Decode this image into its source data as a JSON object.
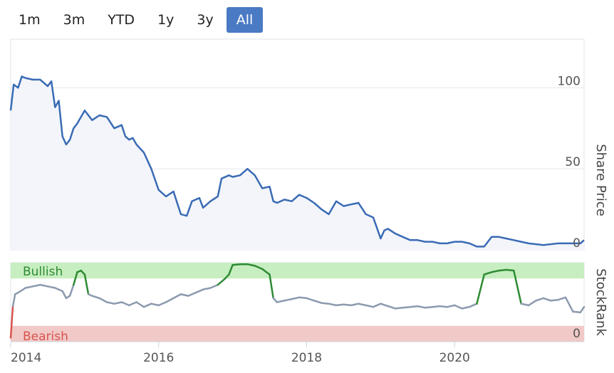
{
  "range_buttons": [
    {
      "label": "1m",
      "active": false
    },
    {
      "label": "3m",
      "active": false
    },
    {
      "label": "YTD",
      "active": false
    },
    {
      "label": "1y",
      "active": false
    },
    {
      "label": "3y",
      "active": false
    },
    {
      "label": "All",
      "active": true
    }
  ],
  "colors": {
    "price_line": "#3a6bb5",
    "price_fill": "#f3f5fa",
    "bullish_band": "#c7eec0",
    "bearish_band": "#f1c9c6",
    "rank_neutral": "#8c9aae",
    "rank_bullish": "#2e8b34",
    "rank_bearish": "#d9534f",
    "accent_button": "#4a7ac4"
  },
  "chart_data": [
    {
      "type": "line",
      "ylabel": "Share Price",
      "y_ticks": [
        "0",
        "50",
        "100"
      ],
      "ylim": [
        0,
        130
      ],
      "x_ticks": [
        "2014",
        "2016",
        "2018",
        "2020"
      ],
      "xlim": [
        2014.0,
        2021.75
      ],
      "grid": true,
      "series": [
        {
          "x": [
            2014.0,
            2014.04,
            2014.1,
            2014.15,
            2014.2,
            2014.3,
            2014.4,
            2014.5,
            2014.55,
            2014.6,
            2014.65,
            2014.7,
            2014.75,
            2014.8,
            2014.85,
            2014.9,
            2015.0,
            2015.1,
            2015.2,
            2015.3,
            2015.4,
            2015.5,
            2015.55,
            2015.6,
            2015.65,
            2015.7,
            2015.8,
            2015.9,
            2016.0,
            2016.1,
            2016.2,
            2016.3,
            2016.38,
            2016.45,
            2016.55,
            2016.6,
            2016.7,
            2016.8,
            2016.85,
            2016.95,
            2017.0,
            2017.1,
            2017.2,
            2017.3,
            2017.4,
            2017.5,
            2017.55,
            2017.6,
            2017.7,
            2017.8,
            2017.9,
            2018.0,
            2018.1,
            2018.2,
            2018.3,
            2018.4,
            2018.5,
            2018.6,
            2018.7,
            2018.8,
            2018.9,
            2019.0,
            2019.05,
            2019.1,
            2019.2,
            2019.3,
            2019.4,
            2019.5,
            2019.6,
            2019.7,
            2019.8,
            2019.9,
            2020.0,
            2020.1,
            2020.2,
            2020.3,
            2020.4,
            2020.5,
            2020.6,
            2020.7,
            2020.8,
            2020.9,
            2021.0,
            2021.2,
            2021.4,
            2021.6,
            2021.7,
            2021.75
          ],
          "values": [
            86,
            102,
            100,
            107,
            106,
            105,
            105,
            101,
            104,
            88,
            92,
            70,
            65,
            68,
            75,
            78,
            86,
            80,
            83,
            82,
            75,
            77,
            70,
            68,
            69,
            65,
            60,
            50,
            37,
            33,
            36,
            22,
            21,
            30,
            32,
            26,
            30,
            33,
            44,
            46,
            45,
            46,
            50,
            46,
            38,
            39,
            30,
            29,
            31,
            30,
            34,
            32,
            29,
            25,
            22,
            30,
            27,
            28,
            29,
            22,
            20,
            7,
            12,
            13,
            10,
            8,
            6,
            6,
            5,
            5,
            4,
            4,
            5,
            5,
            4,
            2,
            2,
            8,
            8,
            7,
            6,
            5,
            4,
            3,
            4,
            4,
            4,
            6
          ]
        }
      ]
    },
    {
      "type": "line",
      "ylabel": "StockRank",
      "y_ticks": [
        "0"
      ],
      "ylim": [
        0,
        100
      ],
      "zones": [
        {
          "label": "Bullish",
          "from": 80,
          "to": 100
        },
        {
          "label": "Bearish",
          "from": 0,
          "to": 20
        }
      ],
      "xlim": [
        2014.0,
        2021.75
      ],
      "series": [
        {
          "x": [
            2014.0,
            2014.03,
            2014.06,
            2014.1,
            2014.2,
            2014.3,
            2014.4,
            2014.5,
            2014.6,
            2014.7,
            2014.75,
            2014.8,
            2014.85,
            2014.9,
            2014.95,
            2015.0,
            2015.05,
            2015.1,
            2015.2,
            2015.3,
            2015.4,
            2015.5,
            2015.6,
            2015.7,
            2015.8,
            2015.9,
            2016.0,
            2016.1,
            2016.2,
            2016.3,
            2016.4,
            2016.5,
            2016.6,
            2016.7,
            2016.8,
            2016.9,
            2016.95,
            2017.0,
            2017.1,
            2017.2,
            2017.3,
            2017.4,
            2017.5,
            2017.55,
            2017.6,
            2017.7,
            2017.8,
            2017.9,
            2018.0,
            2018.1,
            2018.2,
            2018.3,
            2018.4,
            2018.5,
            2018.6,
            2018.7,
            2018.8,
            2018.9,
            2019.0,
            2019.1,
            2019.2,
            2019.3,
            2019.4,
            2019.5,
            2019.6,
            2019.7,
            2019.8,
            2019.9,
            2020.0,
            2020.1,
            2020.2,
            2020.3,
            2020.4,
            2020.5,
            2020.6,
            2020.7,
            2020.8,
            2020.9,
            2021.0,
            2021.1,
            2021.2,
            2021.3,
            2021.4,
            2021.5,
            2021.6,
            2021.7,
            2021.75
          ],
          "values": [
            5,
            45,
            60,
            62,
            68,
            70,
            72,
            70,
            68,
            64,
            55,
            58,
            72,
            88,
            90,
            85,
            60,
            58,
            55,
            50,
            48,
            50,
            46,
            50,
            44,
            48,
            46,
            50,
            55,
            60,
            58,
            62,
            66,
            68,
            72,
            80,
            85,
            97,
            98,
            98,
            96,
            92,
            85,
            55,
            50,
            52,
            54,
            56,
            55,
            52,
            49,
            48,
            46,
            47,
            46,
            48,
            46,
            44,
            48,
            45,
            42,
            43,
            44,
            45,
            43,
            44,
            45,
            44,
            46,
            42,
            44,
            48,
            85,
            88,
            90,
            91,
            90,
            48,
            46,
            52,
            55,
            52,
            53,
            56,
            38,
            37,
            44
          ]
        }
      ]
    }
  ]
}
